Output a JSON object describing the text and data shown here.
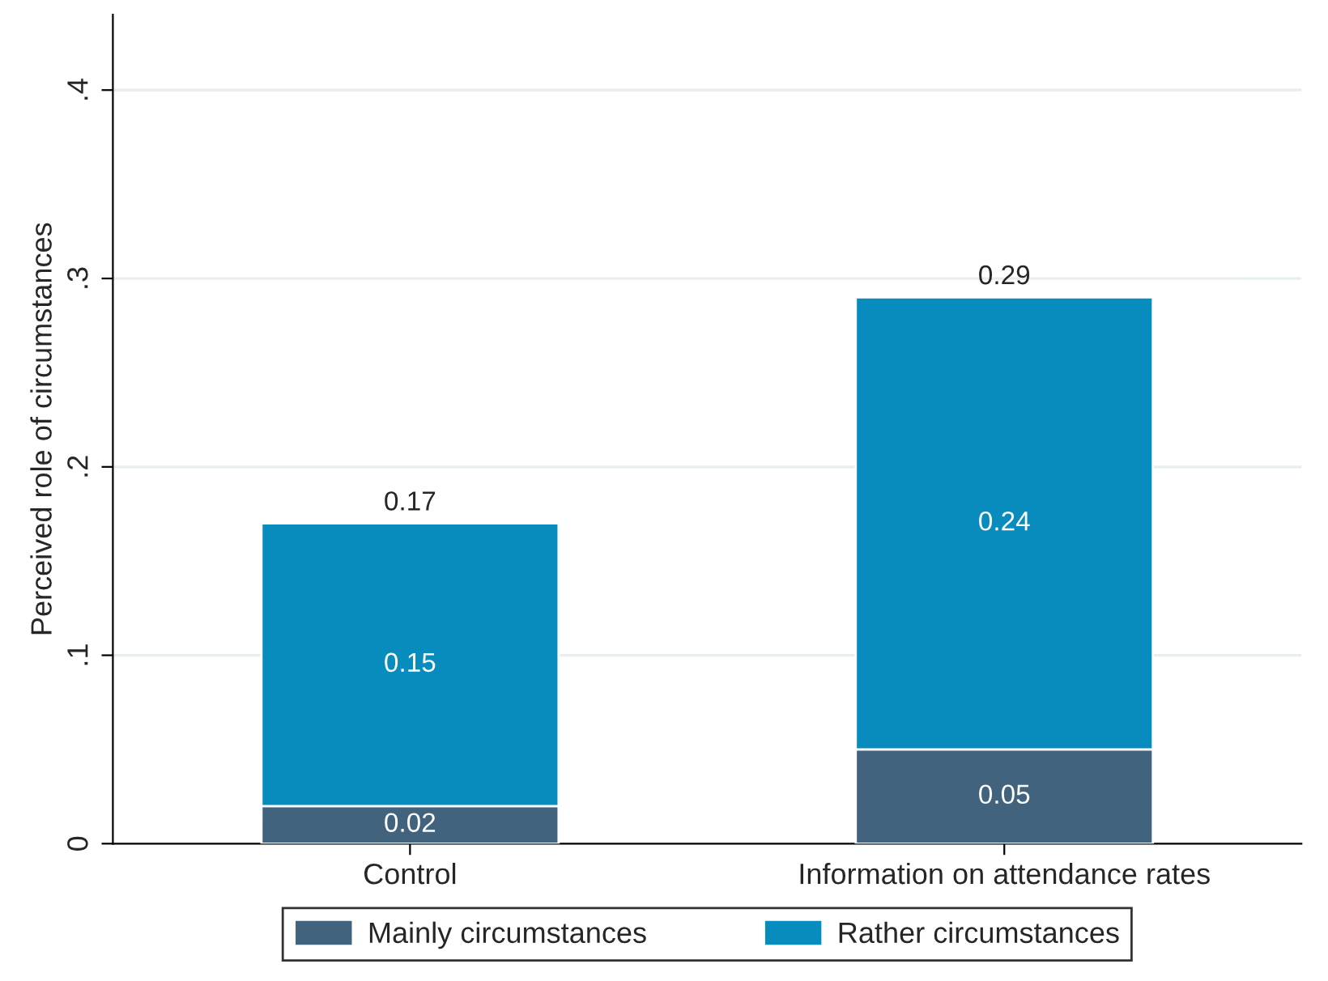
{
  "chart_data": {
    "type": "bar",
    "stacked": true,
    "ylabel": "Perceived role of circumstances",
    "categories": [
      "Control",
      "Information on attendance rates"
    ],
    "series": [
      {
        "name": "Mainly circumstances",
        "color": "#41637e",
        "values": [
          0.02,
          0.05
        ]
      },
      {
        "name": "Rather circumstances",
        "color": "#088cbe",
        "values": [
          0.15,
          0.24
        ]
      }
    ],
    "ylim": [
      0,
      0.44
    ],
    "yticks": [
      {
        "value": 0,
        "label": "0"
      },
      {
        "value": 0.1,
        "label": ".1"
      },
      {
        "value": 0.2,
        "label": ".2"
      },
      {
        "value": 0.3,
        "label": ".3"
      },
      {
        "value": 0.4,
        "label": ".4"
      }
    ],
    "grid": "y",
    "legend": "bottom",
    "data_labels": true,
    "totals": [
      "0.17",
      "0.29"
    ]
  }
}
